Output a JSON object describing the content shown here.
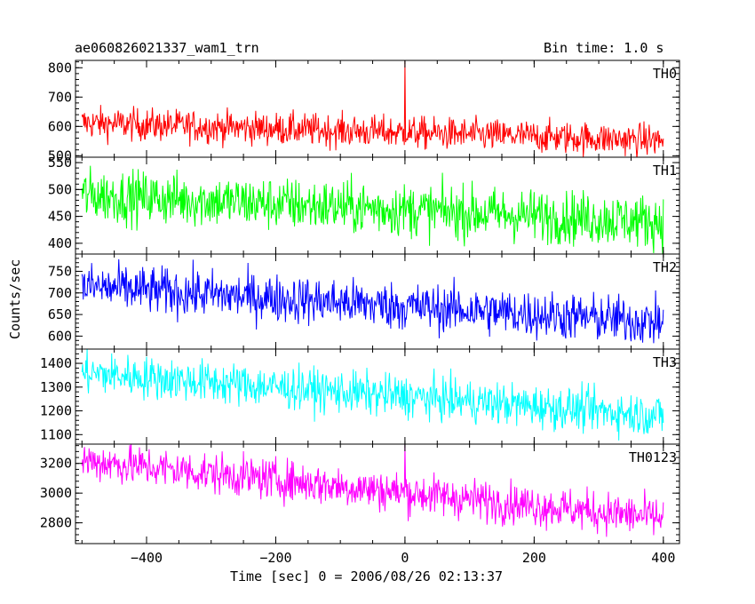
{
  "header": {
    "title": "ae060826021337_wam1_trn",
    "bin_time": "Bin time: 1.0 s"
  },
  "axes": {
    "ylabel": "Counts/sec",
    "xlabel": "Time [sec] 0 = 2006/08/26 02:13:37"
  },
  "chart_data": {
    "type": "line",
    "title": "ae060826021337_wam1_trn",
    "subtitle": "Bin time: 1.0 s",
    "xlabel": "Time [sec] 0 = 2006/08/26 02:13:37",
    "ylabel": "Counts/sec",
    "xlim": [
      -510,
      425
    ],
    "x_ticks": [
      -400,
      -200,
      0,
      200,
      400
    ],
    "x_range": [
      -500,
      400
    ],
    "bin_size": 1.0,
    "grid": false,
    "panels": [
      {
        "name": "TH0",
        "color": "#ff0000",
        "ylim": [
          495,
          825
        ],
        "ticks": [
          500,
          600,
          700,
          800
        ],
        "start_mean": 612,
        "end_mean": 552,
        "noise": 28,
        "spikes": [
          {
            "x": 0,
            "y": 825
          }
        ]
      },
      {
        "name": "TH1",
        "color": "#00ff00",
        "ylim": [
          380,
          560
        ],
        "ticks": [
          400,
          450,
          500,
          550
        ],
        "start_mean": 490,
        "end_mean": 440,
        "noise": 25,
        "spikes": []
      },
      {
        "name": "TH2",
        "color": "#0000ff",
        "ylim": [
          570,
          790
        ],
        "ticks": [
          600,
          650,
          700,
          750
        ],
        "start_mean": 715,
        "end_mean": 632,
        "noise": 28,
        "spikes": []
      },
      {
        "name": "TH3",
        "color": "#00ffff",
        "ylim": [
          1060,
          1460
        ],
        "ticks": [
          1100,
          1200,
          1300,
          1400
        ],
        "start_mean": 1360,
        "end_mean": 1180,
        "noise": 45,
        "spikes": []
      },
      {
        "name": "TH0123",
        "color": "#ff00ff",
        "ylim": [
          2660,
          3330
        ],
        "ticks": [
          2800,
          3000,
          3200
        ],
        "start_mean": 3220,
        "end_mean": 2830,
        "noise": 70,
        "spikes": [
          {
            "x": 0,
            "y": 3330
          }
        ]
      }
    ]
  }
}
